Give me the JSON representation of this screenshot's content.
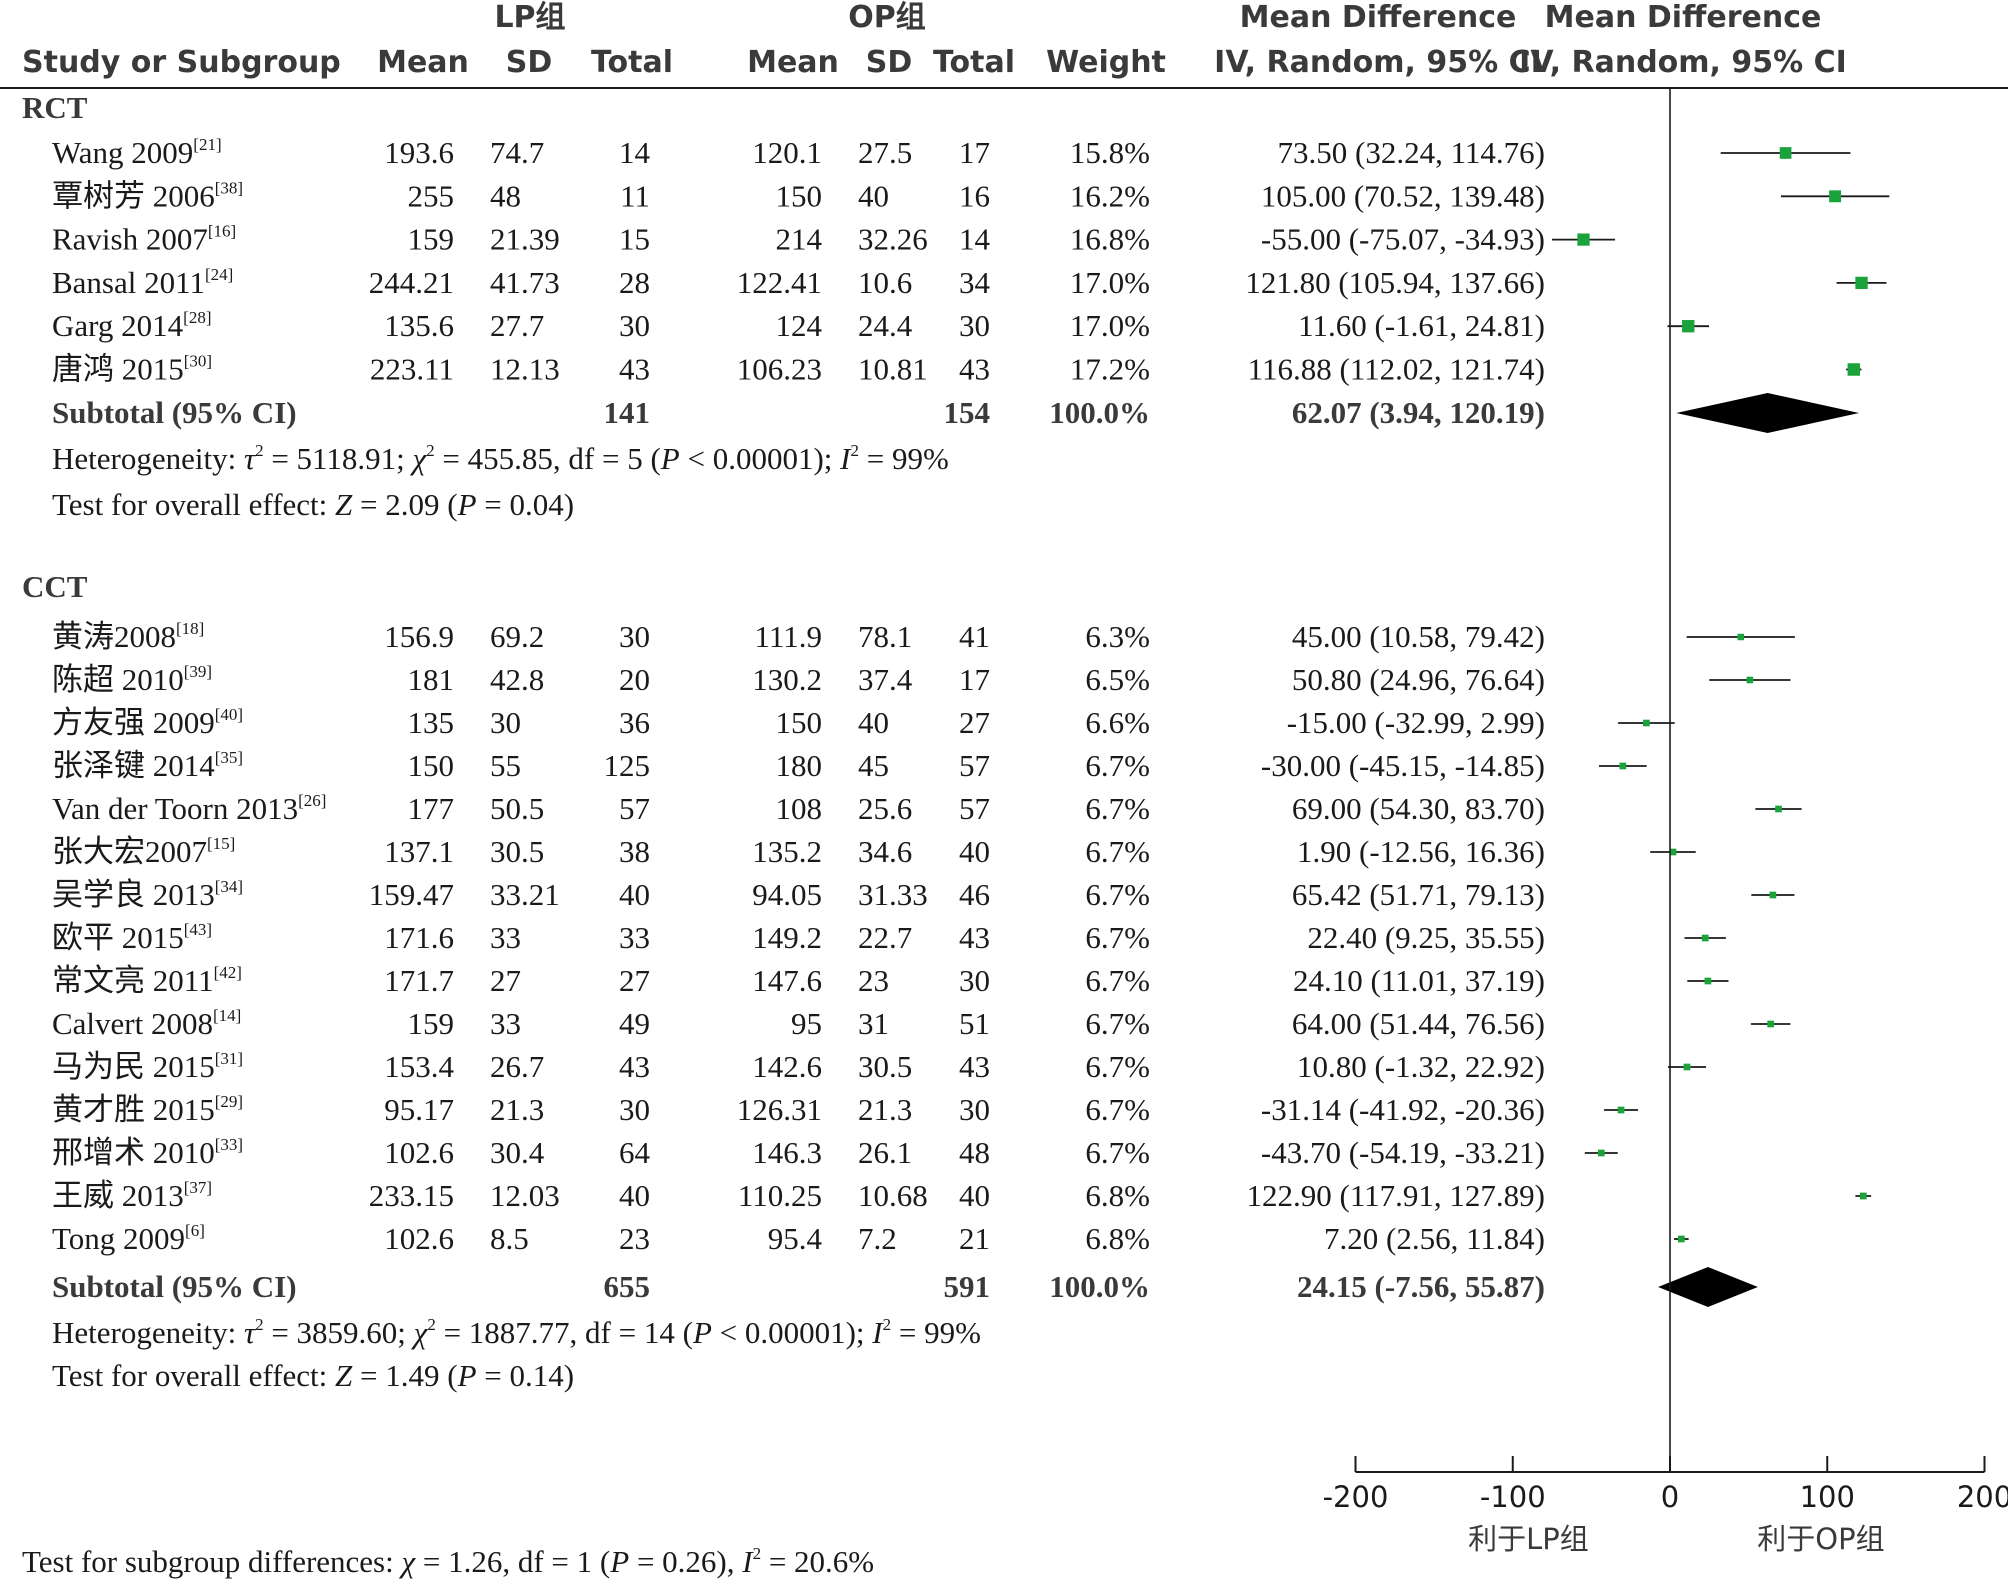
{
  "headers": {
    "group1": "LP组",
    "group2": "OP组",
    "study": "Study or Subgroup",
    "mean": "Mean",
    "sd": "SD",
    "total": "Total",
    "weight": "Weight",
    "md_top": "Mean Difference",
    "md_bottom": "IV, Random, 95% CI",
    "plot_top": "Mean Difference",
    "plot_bottom": "IV, Random, 95% CI"
  },
  "colors": {
    "marker": "#1aa33a",
    "text": "#1a1a1a",
    "header": "#3a3a3a"
  },
  "chart_data": {
    "type": "forest",
    "xlim": [
      -200,
      200
    ],
    "x_ticks": [
      "-200",
      "-100",
      "0",
      "100",
      "200"
    ],
    "x_tick_values": [
      -200,
      -100,
      0,
      100,
      200
    ],
    "favours_left": "利于LP组",
    "favours_right": "利于OP组",
    "subgroup_test": {
      "prefix": "Test for subgroup differences: ",
      "chi": "χ",
      "rest": " = 1.26, df = 1 (",
      "p": "P",
      "p_rest": " = 0.26), ",
      "i2": "I",
      "i2_rest": " = 20.6%"
    },
    "groups": [
      {
        "name": "RCT",
        "studies": [
          {
            "study": "Wang 2009",
            "ref": "[21]",
            "m1": "193.6",
            "sd1": "74.7",
            "n1": "14",
            "m2": "120.1",
            "sd2": "27.5",
            "n2": "17",
            "weight": "15.8%",
            "ci": "73.50 (32.24, 114.76)",
            "md": 73.5,
            "lo": 32.24,
            "hi": 114.76,
            "w": 15.8
          },
          {
            "study": "覃树芳 2006",
            "ref": "[38]",
            "m1": "255",
            "sd1": "48",
            "n1": "11",
            "m2": "150",
            "sd2": "40",
            "n2": "16",
            "weight": "16.2%",
            "ci": "105.00 (70.52, 139.48)",
            "md": 105.0,
            "lo": 70.52,
            "hi": 139.48,
            "w": 16.2
          },
          {
            "study": "Ravish 2007",
            "ref": "[16]",
            "m1": "159",
            "sd1": "21.39",
            "n1": "15",
            "m2": "214",
            "sd2": "32.26",
            "n2": "14",
            "weight": "16.8%",
            "ci": "-55.00 (-75.07, -34.93)",
            "md": -55.0,
            "lo": -75.07,
            "hi": -34.93,
            "w": 16.8
          },
          {
            "study": "Bansal 2011",
            "ref": "[24]",
            "m1": "244.21",
            "sd1": "41.73",
            "n1": "28",
            "m2": "122.41",
            "sd2": "10.6",
            "n2": "34",
            "weight": "17.0%",
            "ci": "121.80 (105.94, 137.66)",
            "md": 121.8,
            "lo": 105.94,
            "hi": 137.66,
            "w": 17.0
          },
          {
            "study": "Garg 2014",
            "ref": "[28]",
            "m1": "135.6",
            "sd1": "27.7",
            "n1": "30",
            "m2": "124",
            "sd2": "24.4",
            "n2": "30",
            "weight": "17.0%",
            "ci": "11.60 (-1.61, 24.81)",
            "md": 11.6,
            "lo": -1.61,
            "hi": 24.81,
            "w": 17.0
          },
          {
            "study": "唐鸿 2015",
            "ref": "[30]",
            "m1": "223.11",
            "sd1": "12.13",
            "n1": "43",
            "m2": "106.23",
            "sd2": "10.81",
            "n2": "43",
            "weight": "17.2%",
            "ci": "116.88 (112.02, 121.74)",
            "md": 116.88,
            "lo": 112.02,
            "hi": 121.74,
            "w": 17.2
          }
        ],
        "subtotal": {
          "label": "Subtotal (95% CI)",
          "n1": "141",
          "n2": "154",
          "weight": "100.0%",
          "ci": "62.07 (3.94, 120.19)",
          "md": 62.07,
          "lo": 3.94,
          "hi": 120.19
        },
        "heterogeneity": {
          "label": "Heterogeneity: ",
          "tau": "τ",
          "tau_val": " = 5118.91; ",
          "chi": "χ",
          "chi_val": " = 455.85, df = 5 (",
          "p": "P",
          "p_val": " < 0.00001); ",
          "i2": "I",
          "i2_val": " = 99%"
        },
        "overall": {
          "label": "Test for overall effect: ",
          "z": "Z",
          "z_val": " = 2.09 (",
          "p": "P",
          "p_val": " = 0.04)"
        }
      },
      {
        "name": "CCT",
        "studies": [
          {
            "study": "黄涛2008",
            "ref": "[18]",
            "m1": "156.9",
            "sd1": "69.2",
            "n1": "30",
            "m2": "111.9",
            "sd2": "78.1",
            "n2": "41",
            "weight": "6.3%",
            "ci": "45.00 (10.58, 79.42)",
            "md": 45.0,
            "lo": 10.58,
            "hi": 79.42,
            "w": 6.3
          },
          {
            "study": "陈超 2010",
            "ref": "[39]",
            "m1": "181",
            "sd1": "42.8",
            "n1": "20",
            "m2": "130.2",
            "sd2": "37.4",
            "n2": "17",
            "weight": "6.5%",
            "ci": "50.80 (24.96, 76.64)",
            "md": 50.8,
            "lo": 24.96,
            "hi": 76.64,
            "w": 6.5
          },
          {
            "study": "方友强 2009",
            "ref": "[40]",
            "m1": "135",
            "sd1": "30",
            "n1": "36",
            "m2": "150",
            "sd2": "40",
            "n2": "27",
            "weight": "6.6%",
            "ci": "-15.00 (-32.99, 2.99)",
            "md": -15.0,
            "lo": -32.99,
            "hi": 2.99,
            "w": 6.6
          },
          {
            "study": "张泽键 2014",
            "ref": "[35]",
            "m1": "150",
            "sd1": "55",
            "n1": "125",
            "m2": "180",
            "sd2": "45",
            "n2": "57",
            "weight": "6.7%",
            "ci": "-30.00 (-45.15, -14.85)",
            "md": -30.0,
            "lo": -45.15,
            "hi": -14.85,
            "w": 6.7
          },
          {
            "study": "Van der Toorn 2013",
            "ref": "[26]",
            "m1": "177",
            "sd1": "50.5",
            "n1": "57",
            "m2": "108",
            "sd2": "25.6",
            "n2": "57",
            "weight": "6.7%",
            "ci": "69.00 (54.30, 83.70)",
            "md": 69.0,
            "lo": 54.3,
            "hi": 83.7,
            "w": 6.7
          },
          {
            "study": "张大宏2007",
            "ref": "[15]",
            "m1": "137.1",
            "sd1": "30.5",
            "n1": "38",
            "m2": "135.2",
            "sd2": "34.6",
            "n2": "40",
            "weight": "6.7%",
            "ci": "1.90 (-12.56, 16.36)",
            "md": 1.9,
            "lo": -12.56,
            "hi": 16.36,
            "w": 6.7
          },
          {
            "study": "吴学良 2013",
            "ref": "[34]",
            "m1": "159.47",
            "sd1": "33.21",
            "n1": "40",
            "m2": "94.05",
            "sd2": "31.33",
            "n2": "46",
            "weight": "6.7%",
            "ci": "65.42 (51.71, 79.13)",
            "md": 65.42,
            "lo": 51.71,
            "hi": 79.13,
            "w": 6.7
          },
          {
            "study": "欧平 2015",
            "ref": "[43]",
            "m1": "171.6",
            "sd1": "33",
            "n1": "33",
            "m2": "149.2",
            "sd2": "22.7",
            "n2": "43",
            "weight": "6.7%",
            "ci": "22.40 (9.25, 35.55)",
            "md": 22.4,
            "lo": 9.25,
            "hi": 35.55,
            "w": 6.7
          },
          {
            "study": "常文亮 2011",
            "ref": "[42]",
            "m1": "171.7",
            "sd1": "27",
            "n1": "27",
            "m2": "147.6",
            "sd2": "23",
            "n2": "30",
            "weight": "6.7%",
            "ci": "24.10 (11.01, 37.19)",
            "md": 24.1,
            "lo": 11.01,
            "hi": 37.19,
            "w": 6.7
          },
          {
            "study": "Calvert 2008",
            "ref": "[14]",
            "m1": "159",
            "sd1": "33",
            "n1": "49",
            "m2": "95",
            "sd2": "31",
            "n2": "51",
            "weight": "6.7%",
            "ci": "64.00 (51.44, 76.56)",
            "md": 64.0,
            "lo": 51.44,
            "hi": 76.56,
            "w": 6.7
          },
          {
            "study": "马为民 2015",
            "ref": "[31]",
            "m1": "153.4",
            "sd1": "26.7",
            "n1": "43",
            "m2": "142.6",
            "sd2": "30.5",
            "n2": "43",
            "weight": "6.7%",
            "ci": "10.80 (-1.32, 22.92)",
            "md": 10.8,
            "lo": -1.32,
            "hi": 22.92,
            "w": 6.7
          },
          {
            "study": "黄才胜 2015",
            "ref": "[29]",
            "m1": "95.17",
            "sd1": "21.3",
            "n1": "30",
            "m2": "126.31",
            "sd2": "21.3",
            "n2": "30",
            "weight": "6.7%",
            "ci": "-31.14 (-41.92, -20.36)",
            "md": -31.14,
            "lo": -41.92,
            "hi": -20.36,
            "w": 6.7
          },
          {
            "study": "邢增术 2010",
            "ref": "[33]",
            "m1": "102.6",
            "sd1": "30.4",
            "n1": "64",
            "m2": "146.3",
            "sd2": "26.1",
            "n2": "48",
            "weight": "6.7%",
            "ci": "-43.70 (-54.19, -33.21)",
            "md": -43.7,
            "lo": -54.19,
            "hi": -33.21,
            "w": 6.7
          },
          {
            "study": "王威 2013",
            "ref": "[37]",
            "m1": "233.15",
            "sd1": "12.03",
            "n1": "40",
            "m2": "110.25",
            "sd2": "10.68",
            "n2": "40",
            "weight": "6.8%",
            "ci": "122.90 (117.91, 127.89)",
            "md": 122.9,
            "lo": 117.91,
            "hi": 127.89,
            "w": 6.8
          },
          {
            "study": "Tong 2009",
            "ref": "[6]",
            "m1": "102.6",
            "sd1": "8.5",
            "n1": "23",
            "m2": "95.4",
            "sd2": "7.2",
            "n2": "21",
            "weight": "6.8%",
            "ci": "7.20 (2.56, 11.84)",
            "md": 7.2,
            "lo": 2.56,
            "hi": 11.84,
            "w": 6.8
          }
        ],
        "subtotal": {
          "label": "Subtotal (95% CI)",
          "n1": "655",
          "n2": "591",
          "weight": "100.0%",
          "ci": "24.15 (-7.56, 55.87)",
          "md": 24.15,
          "lo": -7.56,
          "hi": 55.87
        },
        "heterogeneity": {
          "label": "Heterogeneity: ",
          "tau": "τ",
          "tau_val": " = 3859.60; ",
          "chi": "χ",
          "chi_val": " = 1887.77, df = 14 (",
          "p": "P",
          "p_val": " < 0.00001); ",
          "i2": "I",
          "i2_val": " = 99%"
        },
        "overall": {
          "label": "Test for overall effect: ",
          "z": "Z",
          "z_val": " = 1.49 (",
          "p": "P",
          "p_val": " = 0.14)"
        }
      }
    ]
  }
}
